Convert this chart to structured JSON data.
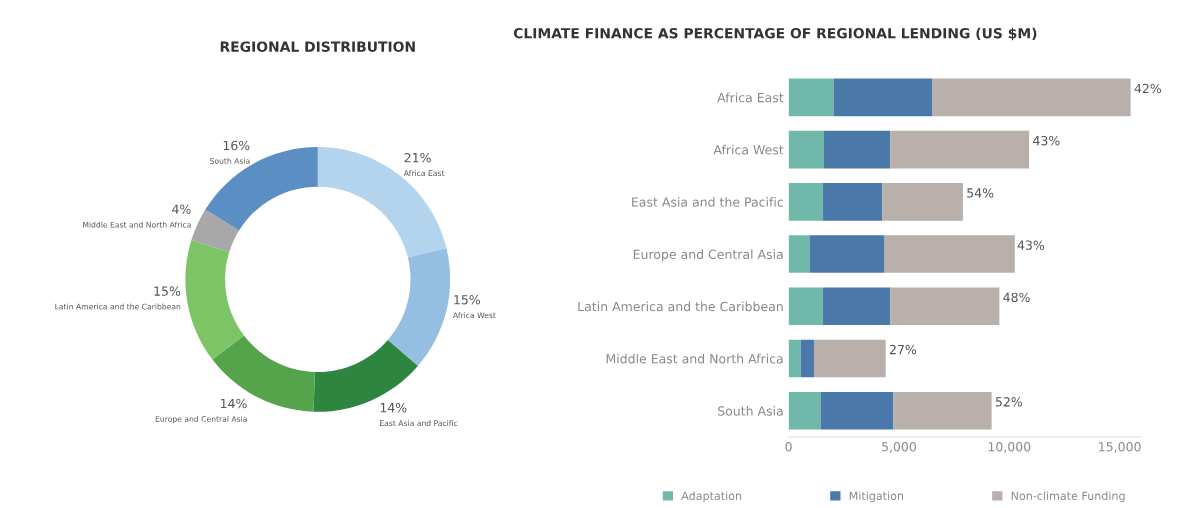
{
  "chart_data": [
    {
      "type": "donut",
      "title": "REGIONAL DISTRIBUTION",
      "categories": [
        "Africa East",
        "Africa West",
        "East Asia and Pacific",
        "Europe and Central Asia",
        "Latin America and the Caribbean",
        "Middle East and North Africa",
        "South Asia"
      ],
      "values": [
        21,
        15,
        14,
        14,
        15,
        4,
        16
      ],
      "value_labels": [
        "21%",
        "15%",
        "14%",
        "14%",
        "15%",
        "4%",
        "16%"
      ],
      "colors": [
        "#b3d4ec",
        "#94bfe2",
        "#2e8540",
        "#55a44c",
        "#7dc466",
        "#a8a8a8",
        "#5b8fc4"
      ]
    },
    {
      "type": "bar",
      "orientation": "horizontal",
      "stacked": true,
      "title": "CLIMATE FINANCE AS PERCENTAGE OF REGIONAL LENDING (US $M)",
      "categories": [
        "Africa East",
        "Africa West",
        "East Asia and the Pacific",
        "Europe and Central Asia",
        "Latin America and the Caribbean",
        "Middle East and North Africa",
        "South Asia"
      ],
      "series": [
        {
          "name": "Adaptation",
          "color": "#6fb8aa",
          "values": [
            2050,
            1600,
            1550,
            950,
            1550,
            550,
            1450
          ]
        },
        {
          "name": "Mitigation",
          "color": "#4a78a8",
          "values": [
            4450,
            3000,
            2700,
            3400,
            3050,
            600,
            3300
          ]
        },
        {
          "name": "Non-climate Funding",
          "color": "#b9b0ab",
          "values": [
            9000,
            6300,
            3650,
            5900,
            4950,
            3250,
            4450
          ]
        }
      ],
      "annotations": [
        {
          "text": "42%",
          "x": 15500,
          "y": "Africa East"
        },
        {
          "text": "43%",
          "x": 10900,
          "y": "Africa West"
        },
        {
          "text": "54%",
          "x": 7900,
          "y": "East Asia and the Pacific"
        },
        {
          "text": "43%",
          "x": 10200,
          "y": "Europe and Central Asia"
        },
        {
          "text": "48%",
          "x": 9550,
          "y": "Latin America and the Caribbean"
        },
        {
          "text": "27%",
          "x": 4400,
          "y": "Middle East and North Africa"
        },
        {
          "text": "52%",
          "x": 9200,
          "y": "South Asia"
        }
      ],
      "xlim": [
        0,
        16000
      ],
      "xticks": [
        0,
        {
          "value": 5000,
          "label": "5,000"
        },
        {
          "value": 10000,
          "label": "10,000"
        },
        {
          "value": 15000,
          "label": "15,000"
        }
      ],
      "legend": "bottom",
      "grid": false
    }
  ]
}
